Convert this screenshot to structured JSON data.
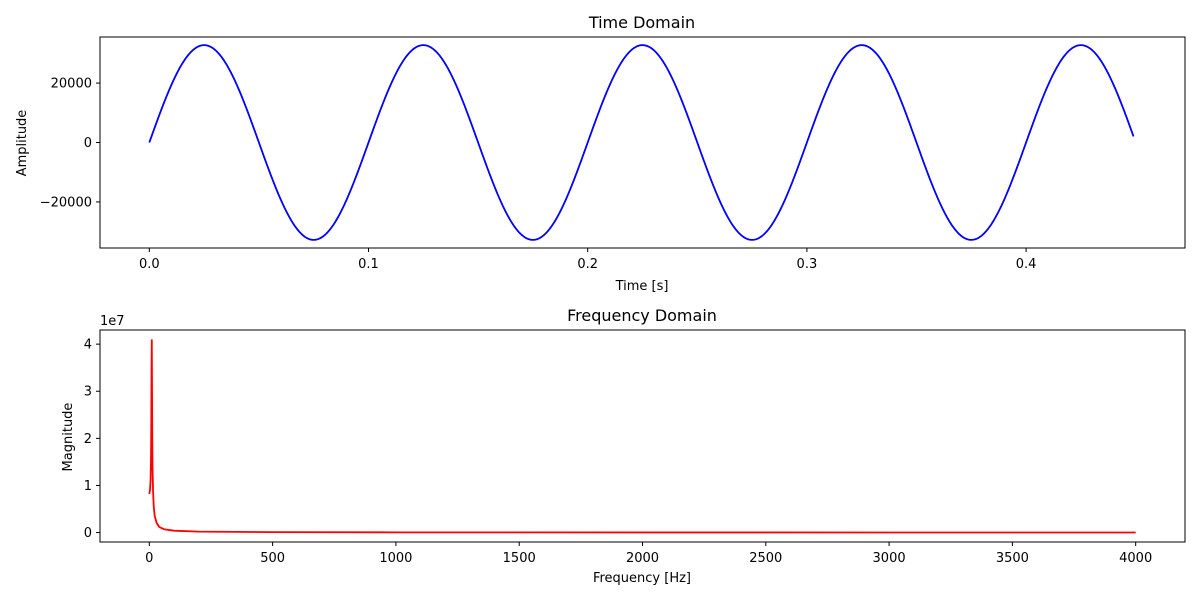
{
  "chart_data": [
    {
      "type": "line",
      "title": "Time Domain",
      "xlabel": "Time [s]",
      "ylabel": "Amplitude",
      "xlim": [
        -0.0225,
        0.4725
      ],
      "ylim": [
        -35500,
        35500
      ],
      "xticks": [
        0.0,
        0.1,
        0.2,
        0.3,
        0.4
      ],
      "xtick_labels": [
        "0.0",
        "0.1",
        "0.2",
        "0.3",
        "0.4"
      ],
      "yticks": [
        -20000,
        0,
        20000
      ],
      "ytick_labels": [
        "−20000",
        "0",
        "20000"
      ],
      "grid": false,
      "series": [
        {
          "color": "#0000ff",
          "amplitude": 32767,
          "frequency_hz": 10,
          "x_start": 0.0,
          "x_end": 0.449
        }
      ]
    },
    {
      "type": "line",
      "title": "Frequency Domain",
      "xlabel": "Frequency [Hz]",
      "ylabel": "Magnitude",
      "offset_text": "1e7",
      "xlim": [
        -200,
        4200
      ],
      "ylim": [
        -0.2,
        4.3
      ],
      "xticks": [
        0,
        500,
        1000,
        1500,
        2000,
        2500,
        3000,
        3500,
        4000
      ],
      "xtick_labels": [
        "0",
        "500",
        "1000",
        "1500",
        "2000",
        "2500",
        "3000",
        "3500",
        "4000"
      ],
      "yticks": [
        0,
        1,
        2,
        3,
        4
      ],
      "ytick_labels": [
        "0",
        "1",
        "2",
        "3",
        "4"
      ],
      "grid": false,
      "series": [
        {
          "color": "#ff0000",
          "x": [
            0,
            3,
            5,
            7,
            8,
            9,
            10,
            11,
            12,
            13,
            15,
            18,
            22,
            30,
            40,
            60,
            100,
            200,
            500,
            1000,
            2000,
            3000,
            4000
          ],
          "y": [
            0.82,
            0.92,
            1.1,
            1.6,
            2.3,
            3.5,
            4.1,
            3.0,
            2.0,
            1.4,
            0.9,
            0.55,
            0.35,
            0.2,
            0.12,
            0.07,
            0.04,
            0.02,
            0.01,
            0.005,
            0.003,
            0.002,
            0.002
          ]
        }
      ]
    }
  ]
}
